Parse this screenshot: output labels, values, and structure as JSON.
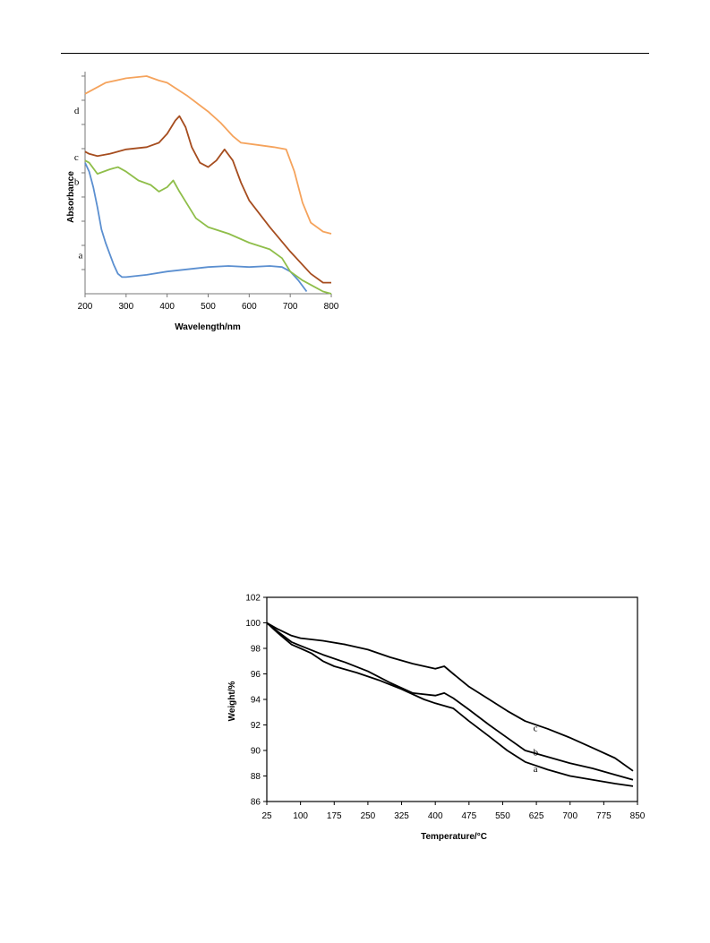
{
  "chart_data": [
    {
      "type": "line",
      "xlabel": "Wavelength/nm",
      "ylabel": "Absorbance",
      "xlim": [
        200,
        800
      ],
      "ylim": [
        0,
        10
      ],
      "grid": false,
      "x_ticks": [
        "200",
        "300",
        "400",
        "500",
        "600",
        "700",
        "800"
      ],
      "y_ticks_labeled": false,
      "series": [
        {
          "name": "a",
          "color": "#5b8fd0",
          "x": [
            200,
            210,
            220,
            230,
            240,
            250,
            260,
            270,
            280,
            290,
            300,
            350,
            400,
            450,
            500,
            550,
            600,
            650,
            680,
            700,
            720,
            740,
            750
          ],
          "y": [
            5.9,
            5.5,
            4.8,
            3.9,
            2.9,
            2.3,
            1.8,
            1.3,
            0.9,
            0.75,
            0.75,
            0.85,
            1.0,
            1.1,
            1.2,
            1.25,
            1.2,
            1.25,
            1.2,
            1.0,
            0.6,
            0.1,
            -0.3
          ]
        },
        {
          "name": "b",
          "color": "#8fbe4a",
          "x": [
            200,
            210,
            230,
            260,
            280,
            300,
            330,
            360,
            380,
            400,
            415,
            430,
            450,
            470,
            500,
            550,
            600,
            650,
            680,
            700,
            730,
            760,
            780,
            800
          ],
          "y": [
            6.0,
            5.9,
            5.4,
            5.6,
            5.7,
            5.5,
            5.1,
            4.9,
            4.6,
            4.8,
            5.1,
            4.6,
            4.0,
            3.4,
            3.0,
            2.7,
            2.3,
            2.0,
            1.6,
            1.0,
            0.6,
            0.3,
            0.1,
            0.0
          ]
        },
        {
          "name": "c",
          "color": "#a64d1f",
          "x": [
            200,
            210,
            230,
            260,
            300,
            350,
            380,
            400,
            420,
            430,
            445,
            460,
            480,
            500,
            520,
            540,
            560,
            580,
            600,
            650,
            700,
            750,
            780,
            800
          ],
          "y": [
            6.4,
            6.3,
            6.2,
            6.3,
            6.5,
            6.6,
            6.8,
            7.2,
            7.8,
            8.0,
            7.5,
            6.6,
            5.9,
            5.7,
            6.0,
            6.5,
            6.0,
            5.0,
            4.2,
            3.0,
            1.9,
            0.9,
            0.5,
            0.5
          ]
        },
        {
          "name": "d",
          "color": "#f5a35c",
          "x": [
            200,
            220,
            250,
            300,
            350,
            380,
            400,
            450,
            500,
            530,
            560,
            580,
            620,
            660,
            690,
            710,
            730,
            750,
            780,
            800
          ],
          "y": [
            9.0,
            9.2,
            9.5,
            9.7,
            9.8,
            9.6,
            9.5,
            8.9,
            8.2,
            7.7,
            7.1,
            6.8,
            6.7,
            6.6,
            6.5,
            5.5,
            4.1,
            3.2,
            2.8,
            2.7
          ]
        }
      ],
      "curve_labels": [
        {
          "text": "d",
          "x": 250,
          "y": 8.1
        },
        {
          "text": "c",
          "x": 250,
          "y": 6.0
        },
        {
          "text": "b",
          "x": 250,
          "y": 4.9
        },
        {
          "text": "a",
          "x": 260,
          "y": 1.6
        }
      ]
    },
    {
      "type": "line",
      "xlabel": "Temperature/°C",
      "ylabel": "Weight/%",
      "xlim": [
        25,
        850
      ],
      "ylim": [
        86,
        102
      ],
      "grid": false,
      "x_ticks": [
        "25",
        "100",
        "175",
        "250",
        "325",
        "400",
        "475",
        "550",
        "625",
        "700",
        "775",
        "850"
      ],
      "y_ticks": [
        "86",
        "88",
        "90",
        "92",
        "94",
        "96",
        "98",
        "100",
        "102"
      ],
      "series": [
        {
          "name": "a",
          "color": "#000000",
          "x": [
            25,
            50,
            80,
            100,
            125,
            150,
            175,
            225,
            275,
            325,
            375,
            400,
            420,
            440,
            475,
            520,
            560,
            600,
            650,
            700,
            750,
            800,
            840
          ],
          "y": [
            100.0,
            99.2,
            98.3,
            98.0,
            97.6,
            97.0,
            96.6,
            96.1,
            95.5,
            94.8,
            94.0,
            93.7,
            93.5,
            93.3,
            92.3,
            91.1,
            90.0,
            89.1,
            88.5,
            88.0,
            87.7,
            87.4,
            87.2
          ]
        },
        {
          "name": "b",
          "color": "#000000",
          "x": [
            25,
            50,
            80,
            100,
            150,
            200,
            250,
            300,
            350,
            400,
            420,
            440,
            475,
            520,
            560,
            600,
            650,
            700,
            750,
            800,
            840
          ],
          "y": [
            100.0,
            99.3,
            98.5,
            98.2,
            97.5,
            96.9,
            96.2,
            95.3,
            94.5,
            94.3,
            94.5,
            94.1,
            93.2,
            92.0,
            91.0,
            90.0,
            89.5,
            89.0,
            88.6,
            88.1,
            87.7
          ]
        },
        {
          "name": "c",
          "color": "#000000",
          "x": [
            25,
            50,
            80,
            100,
            150,
            200,
            250,
            300,
            350,
            400,
            420,
            440,
            475,
            520,
            560,
            600,
            650,
            700,
            750,
            800,
            840
          ],
          "y": [
            100.0,
            99.5,
            99.0,
            98.8,
            98.6,
            98.3,
            97.9,
            97.3,
            96.8,
            96.4,
            96.6,
            96.0,
            95.0,
            94.0,
            93.1,
            92.3,
            91.7,
            91.0,
            90.2,
            89.4,
            88.4
          ]
        }
      ],
      "curve_labels": [
        {
          "text": "c",
          "x": 618,
          "y": 91.5
        },
        {
          "text": "b",
          "x": 618,
          "y": 89.6
        },
        {
          "text": "a",
          "x": 618,
          "y": 88.3
        }
      ]
    }
  ]
}
